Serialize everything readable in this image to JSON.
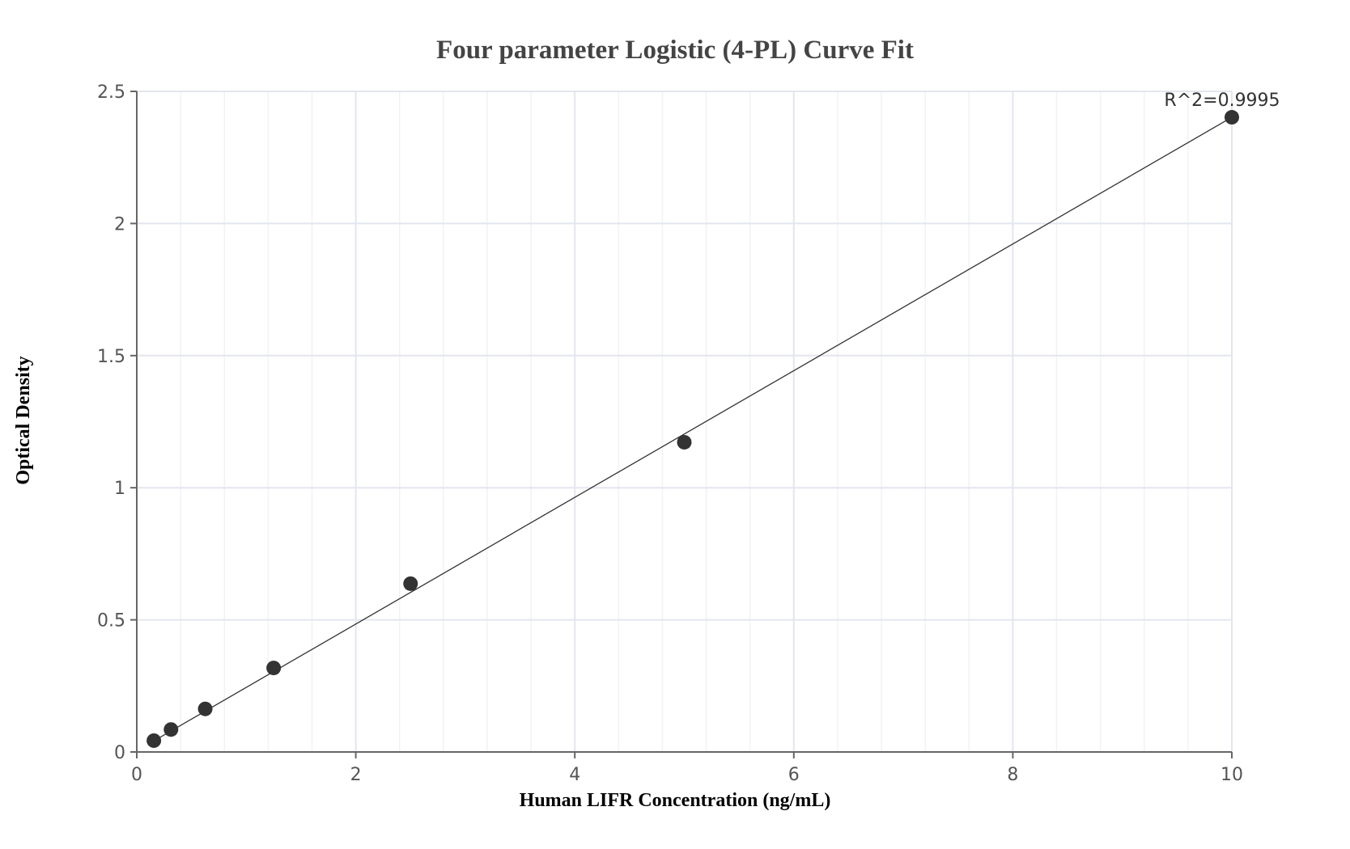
{
  "chart_data": {
    "type": "scatter",
    "title": "Four parameter Logistic (4-PL) Curve Fit",
    "xlabel": "Human LIFR Concentration (ng/mL)",
    "ylabel": "Optical Density",
    "xlim": [
      0,
      10
    ],
    "ylim": [
      0,
      2.5
    ],
    "x_ticks": [
      0,
      2,
      4,
      6,
      8,
      10
    ],
    "y_ticks": [
      0,
      0.5,
      1,
      1.5,
      2,
      2.5
    ],
    "x_tick_labels": [
      "0",
      "2",
      "4",
      "6",
      "8",
      "10"
    ],
    "y_tick_labels": [
      "0",
      "0.5",
      "1",
      "1.5",
      "2",
      "2.5"
    ],
    "grid": true,
    "points": [
      {
        "x": 0.156,
        "y": 0.043
      },
      {
        "x": 0.3125,
        "y": 0.085
      },
      {
        "x": 0.625,
        "y": 0.163
      },
      {
        "x": 1.25,
        "y": 0.318
      },
      {
        "x": 2.5,
        "y": 0.637
      },
      {
        "x": 5,
        "y": 1.172
      },
      {
        "x": 10,
        "y": 2.402
      }
    ],
    "fit_line": {
      "type": "linear",
      "x": [
        0.156,
        10
      ],
      "y": [
        0.042,
        2.402
      ]
    },
    "annotation": "R^2=0.9995",
    "colors": {
      "points": "#333333",
      "line": "#333333",
      "grid_major": "#e3e6ef",
      "grid_minor": "#f1f2f7",
      "axis": "#666666"
    }
  }
}
